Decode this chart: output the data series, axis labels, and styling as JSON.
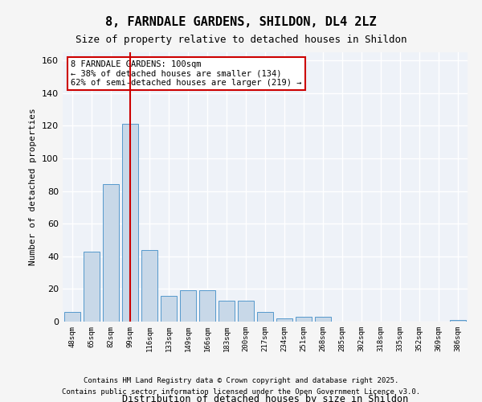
{
  "title": "8, FARNDALE GARDENS, SHILDON, DL4 2LZ",
  "subtitle": "Size of property relative to detached houses in Shildon",
  "xlabel": "Distribution of detached houses by size in Shildon",
  "ylabel": "Number of detached properties",
  "categories": [
    "48sqm",
    "65sqm",
    "82sqm",
    "99sqm",
    "116sqm",
    "133sqm",
    "149sqm",
    "166sqm",
    "183sqm",
    "200sqm",
    "217sqm",
    "234sqm",
    "251sqm",
    "268sqm",
    "285sqm",
    "302sqm",
    "318sqm",
    "335sqm",
    "352sqm",
    "369sqm",
    "386sqm"
  ],
  "values": [
    6,
    43,
    84,
    121,
    44,
    16,
    19,
    19,
    13,
    13,
    6,
    2,
    3,
    3,
    0,
    0,
    0,
    0,
    0,
    0,
    1
  ],
  "bar_color": "#c8d8e8",
  "bar_edge_color": "#5599cc",
  "red_line_x": 3,
  "annotation_text": "8 FARNDALE GARDENS: 100sqm\n← 38% of detached houses are smaller (134)\n62% of semi-detached houses are larger (219) →",
  "annotation_box_color": "#ffffff",
  "annotation_box_edge": "#cc0000",
  "ylim": [
    0,
    165
  ],
  "yticks": [
    0,
    20,
    40,
    60,
    80,
    100,
    120,
    140,
    160
  ],
  "background_color": "#eef2f8",
  "grid_color": "#ffffff",
  "footer_line1": "Contains HM Land Registry data © Crown copyright and database right 2025.",
  "footer_line2": "Contains public sector information licensed under the Open Government Licence v3.0."
}
